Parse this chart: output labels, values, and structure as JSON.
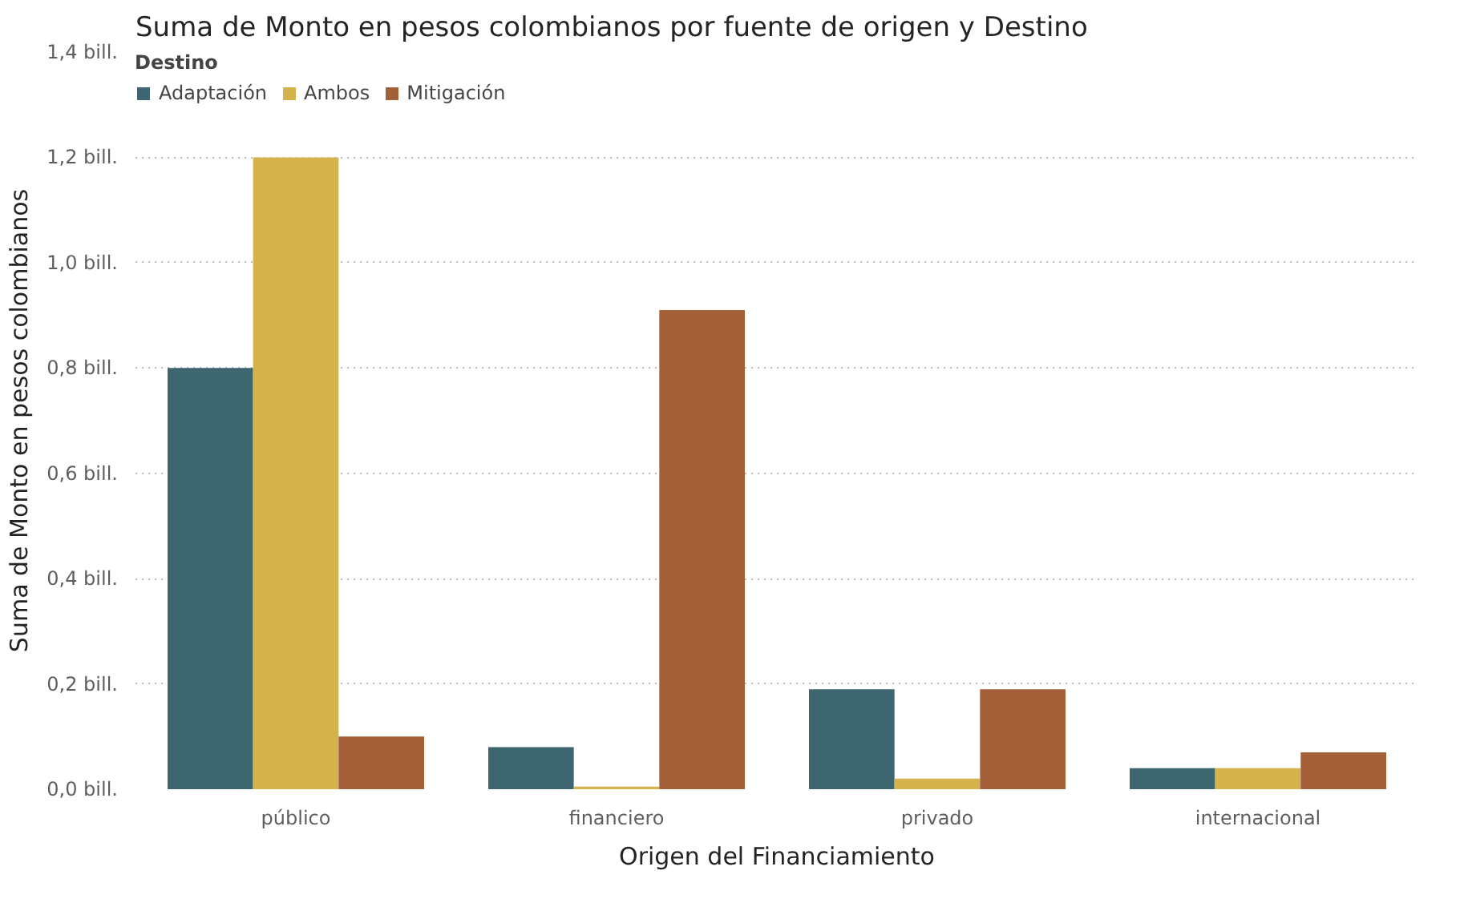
{
  "chart_data": {
    "type": "bar",
    "title": "Suma de Monto en pesos colombianos por fuente de origen y Destino",
    "xlabel": "Origen del Financiamiento",
    "ylabel": "Suma de Monto en pesos colombianos",
    "legend_title": "Destino",
    "categories": [
      "público",
      "financiero",
      "privado",
      "internacional"
    ],
    "series": [
      {
        "name": "Adaptación",
        "color": "#3d6670",
        "values": [
          0.8,
          0.08,
          0.19,
          0.04
        ]
      },
      {
        "name": "Ambos",
        "color": "#d4b24c",
        "values": [
          1.2,
          0.005,
          0.02,
          0.04
        ]
      },
      {
        "name": "Mitigación",
        "color": "#a35f37",
        "values": [
          0.1,
          0.91,
          0.19,
          0.07
        ]
      }
    ],
    "ylim": [
      0,
      1.4
    ],
    "yticks": [
      {
        "value": 0,
        "label": "0,0 bill."
      },
      {
        "value": 0.2,
        "label": "0,2 bill."
      },
      {
        "value": 0.4,
        "label": "0,4 bill."
      },
      {
        "value": 0.6,
        "label": "0,6 bill."
      },
      {
        "value": 0.8,
        "label": "0,8 bill."
      },
      {
        "value": 1.0,
        "label": "1,0 bill."
      },
      {
        "value": 1.2,
        "label": "1,2 bill."
      },
      {
        "value": 1.4,
        "label": "1,4 bill."
      }
    ],
    "grid": "y",
    "legend": "top left"
  }
}
